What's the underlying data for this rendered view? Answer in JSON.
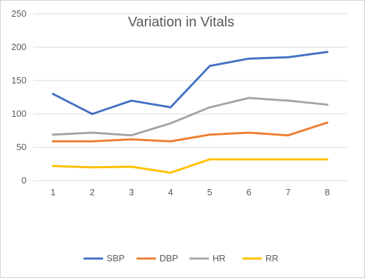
{
  "chart_data": {
    "type": "line",
    "title": "Variation in Vitals",
    "xlabel": "",
    "ylabel": "",
    "categories": [
      "1",
      "2",
      "3",
      "4",
      "5",
      "6",
      "7",
      "8"
    ],
    "ylim": [
      0,
      250
    ],
    "yticks": [
      0,
      50,
      100,
      150,
      200,
      250
    ],
    "grid": true,
    "legend_position": "bottom",
    "series": [
      {
        "name": "SBP",
        "color": "#4472C4",
        "values": [
          130,
          100,
          120,
          110,
          172,
          183,
          185,
          193
        ]
      },
      {
        "name": "DBP",
        "color": "#ED7D31",
        "values": [
          59,
          59,
          62,
          59,
          69,
          72,
          68,
          87
        ]
      },
      {
        "name": "HR",
        "color": "#A5A5A5",
        "values": [
          69,
          72,
          68,
          86,
          110,
          124,
          120,
          114
        ]
      },
      {
        "name": "RR",
        "color": "#FFC000",
        "values": [
          22,
          20,
          21,
          12,
          32,
          32,
          32,
          32
        ]
      }
    ]
  }
}
